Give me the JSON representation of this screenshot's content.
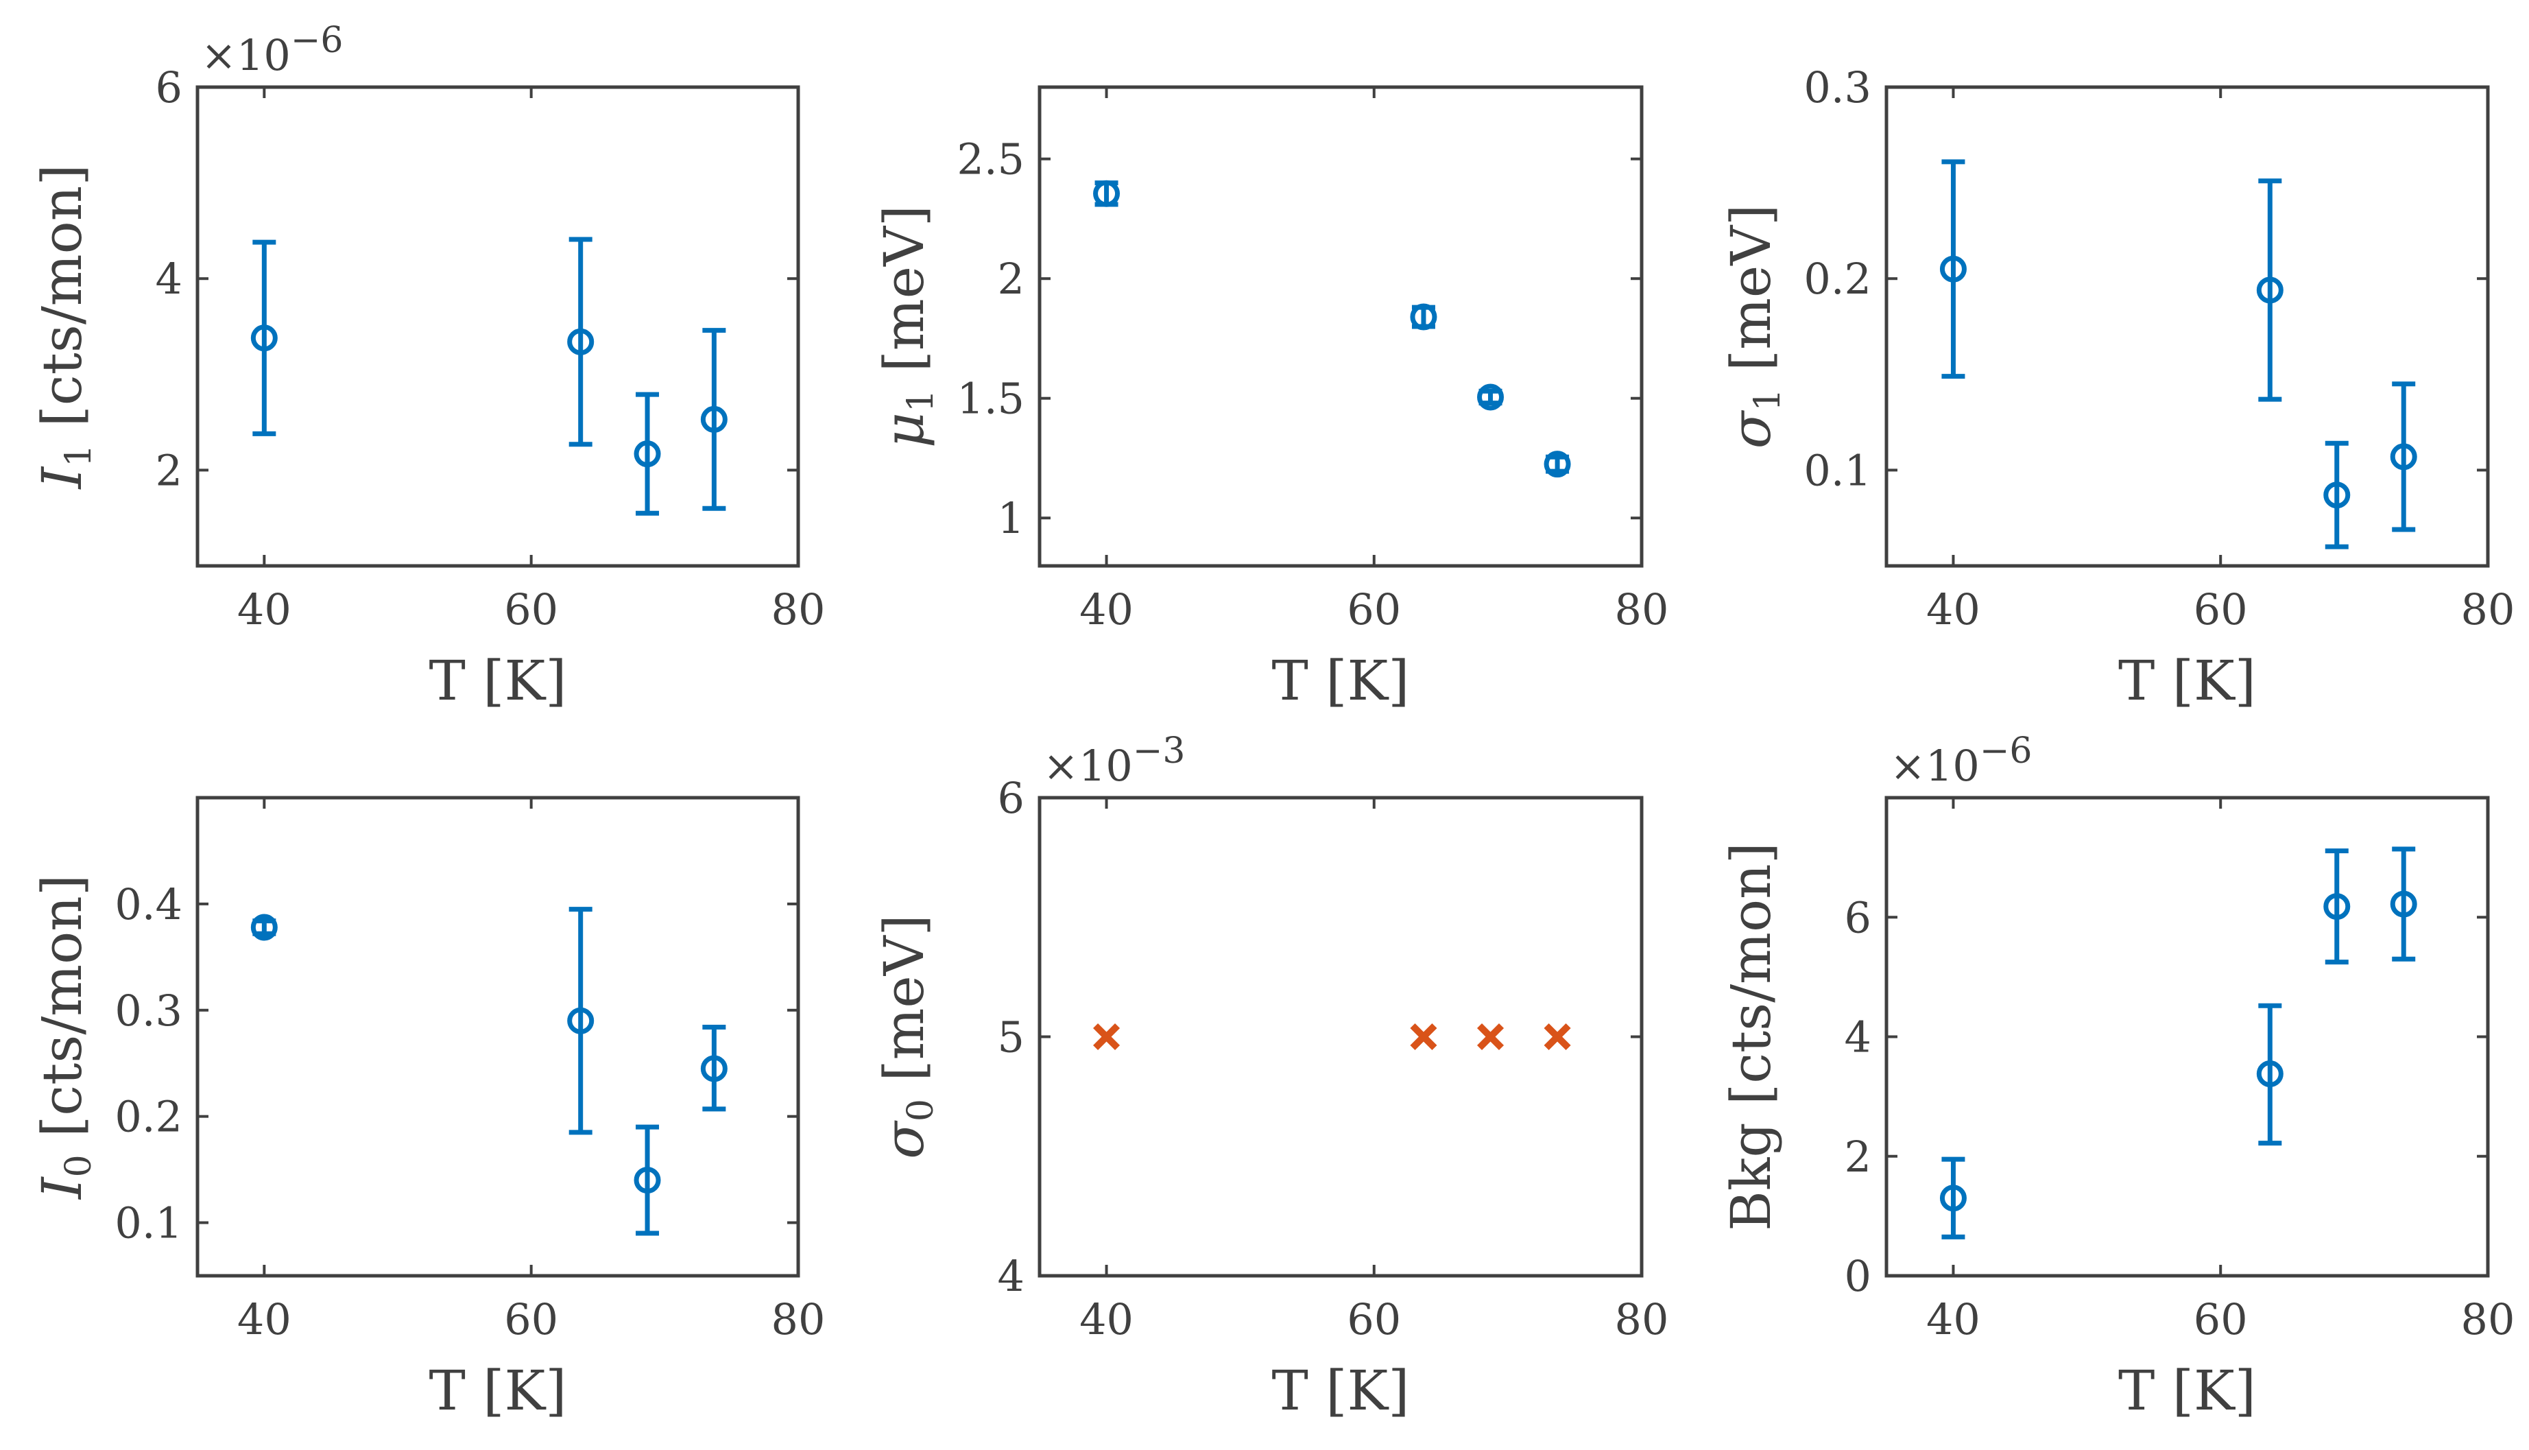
{
  "chart_data": [
    {
      "type": "scatter",
      "panel": "top-left",
      "xlabel": "T [K]",
      "ylabel": "I₁ [cts/mon]",
      "ylabel_parts": {
        "sym": "I",
        "sub": "1",
        "unit": " [cts/mon]"
      },
      "multiplier": {
        "base": "×10",
        "exp": "−6"
      },
      "xlim": [
        35,
        80
      ],
      "ylim": [
        1,
        6
      ],
      "xticks": [
        40,
        60,
        80
      ],
      "yticks": [
        2,
        4,
        6
      ],
      "xtick_labels": [
        "40",
        "60",
        "80"
      ],
      "ytick_labels": [
        "2",
        "4",
        "6"
      ],
      "marker": "circle",
      "color": "#0072bd",
      "points": [
        {
          "x": 40,
          "y": 3.38,
          "lo": 2.38,
          "hi": 4.38
        },
        {
          "x": 63.7,
          "y": 3.34,
          "lo": 2.27,
          "hi": 4.41
        },
        {
          "x": 68.7,
          "y": 2.17,
          "lo": 1.55,
          "hi": 2.79
        },
        {
          "x": 73.7,
          "y": 2.53,
          "lo": 1.6,
          "hi": 3.46
        }
      ]
    },
    {
      "type": "scatter",
      "panel": "top-middle",
      "xlabel": "T [K]",
      "ylabel": "μ₁ [meV]",
      "ylabel_parts": {
        "sym": "μ",
        "sub": "1",
        "unit": " [meV]"
      },
      "xlim": [
        35,
        80
      ],
      "ylim": [
        0.8,
        2.8
      ],
      "xticks": [
        40,
        60,
        80
      ],
      "yticks": [
        1,
        1.5,
        2,
        2.5
      ],
      "xtick_labels": [
        "40",
        "60",
        "80"
      ],
      "ytick_labels": [
        "1",
        "1.5",
        "2",
        "2.5"
      ],
      "marker": "circle",
      "color": "#0072bd",
      "points": [
        {
          "x": 40,
          "y": 2.355,
          "lo": 2.31,
          "hi": 2.4
        },
        {
          "x": 63.7,
          "y": 1.84,
          "lo": 1.8,
          "hi": 1.88
        },
        {
          "x": 68.7,
          "y": 1.505,
          "lo": 1.48,
          "hi": 1.53
        },
        {
          "x": 73.7,
          "y": 1.225,
          "lo": 1.195,
          "hi": 1.255
        }
      ]
    },
    {
      "type": "scatter",
      "panel": "top-right",
      "xlabel": "T [K]",
      "ylabel": "σ₁ [meV]",
      "ylabel_parts": {
        "sym": "σ",
        "sub": "1",
        "unit": " [meV]"
      },
      "xlim": [
        35,
        80
      ],
      "ylim": [
        0.05,
        0.3
      ],
      "xticks": [
        40,
        60,
        80
      ],
      "yticks": [
        0.1,
        0.2,
        0.3
      ],
      "xtick_labels": [
        "40",
        "60",
        "80"
      ],
      "ytick_labels": [
        "0.1",
        "0.2",
        "0.3"
      ],
      "marker": "circle",
      "color": "#0072bd",
      "points": [
        {
          "x": 40,
          "y": 0.205,
          "lo": 0.149,
          "hi": 0.261
        },
        {
          "x": 63.7,
          "y": 0.194,
          "lo": 0.137,
          "hi": 0.251
        },
        {
          "x": 68.7,
          "y": 0.087,
          "lo": 0.06,
          "hi": 0.114
        },
        {
          "x": 73.7,
          "y": 0.107,
          "lo": 0.069,
          "hi": 0.145
        }
      ]
    },
    {
      "type": "scatter",
      "panel": "bottom-left",
      "xlabel": "T [K]",
      "ylabel": "I₀ [cts/mon]",
      "ylabel_parts": {
        "sym": "I",
        "sub": "0",
        "unit": " [cts/mon]"
      },
      "xlim": [
        35,
        80
      ],
      "ylim": [
        0.05,
        0.5
      ],
      "xticks": [
        40,
        60,
        80
      ],
      "yticks": [
        0.1,
        0.2,
        0.3,
        0.4
      ],
      "xtick_labels": [
        "40",
        "60",
        "80"
      ],
      "ytick_labels": [
        "0.1",
        "0.2",
        "0.3",
        "0.4"
      ],
      "marker": "circle",
      "color": "#0072bd",
      "points": [
        {
          "x": 40,
          "y": 0.378,
          "lo": 0.372,
          "hi": 0.384
        },
        {
          "x": 63.7,
          "y": 0.29,
          "lo": 0.185,
          "hi": 0.395
        },
        {
          "x": 68.7,
          "y": 0.14,
          "lo": 0.09,
          "hi": 0.19
        },
        {
          "x": 73.7,
          "y": 0.245,
          "lo": 0.207,
          "hi": 0.284
        }
      ]
    },
    {
      "type": "scatter",
      "panel": "bottom-middle",
      "xlabel": "T [K]",
      "ylabel": "σ₀ [meV]",
      "ylabel_parts": {
        "sym": "σ",
        "sub": "0",
        "unit": " [meV]"
      },
      "multiplier": {
        "base": "×10",
        "exp": "−3"
      },
      "xlim": [
        35,
        80
      ],
      "ylim": [
        4,
        6
      ],
      "xticks": [
        40,
        60,
        80
      ],
      "yticks": [
        4,
        5,
        6
      ],
      "xtick_labels": [
        "40",
        "60",
        "80"
      ],
      "ytick_labels": [
        "4",
        "5",
        "6"
      ],
      "marker": "x",
      "color": "#d95319",
      "points": [
        {
          "x": 40,
          "y": 5
        },
        {
          "x": 63.7,
          "y": 5
        },
        {
          "x": 68.7,
          "y": 5
        },
        {
          "x": 73.7,
          "y": 5
        }
      ]
    },
    {
      "type": "scatter",
      "panel": "bottom-right",
      "xlabel": "T [K]",
      "ylabel": "Bkg [cts/mon]",
      "ylabel_parts": {
        "sym": "Bkg",
        "sub": "",
        "unit": " [cts/mon]"
      },
      "multiplier": {
        "base": "×10",
        "exp": "−6"
      },
      "xlim": [
        35,
        80
      ],
      "ylim": [
        0,
        8
      ],
      "xticks": [
        40,
        60,
        80
      ],
      "yticks": [
        0,
        2,
        4,
        6
      ],
      "xtick_labels": [
        "40",
        "60",
        "80"
      ],
      "ytick_labels": [
        "0",
        "2",
        "4",
        "6"
      ],
      "marker": "circle",
      "color": "#0072bd",
      "points": [
        {
          "x": 40,
          "y": 1.3,
          "lo": 0.65,
          "hi": 1.95
        },
        {
          "x": 63.7,
          "y": 3.38,
          "lo": 2.22,
          "hi": 4.52
        },
        {
          "x": 68.7,
          "y": 6.18,
          "lo": 5.25,
          "hi": 7.11
        },
        {
          "x": 73.7,
          "y": 6.22,
          "lo": 5.3,
          "hi": 7.14
        }
      ]
    }
  ]
}
